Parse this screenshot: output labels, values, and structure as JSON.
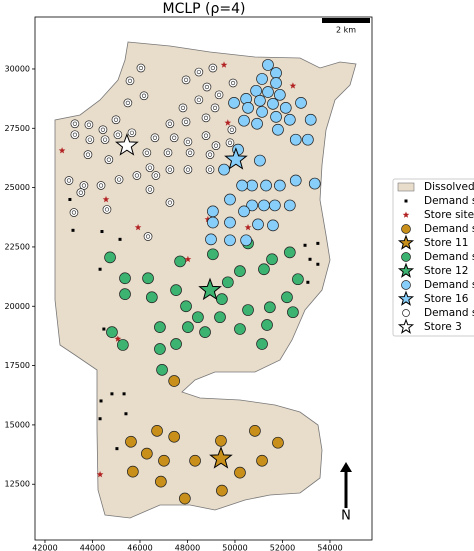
{
  "chart_data": {
    "type": "scatter",
    "title": "MCLP (ρ=4)",
    "xlim": [
      41580,
      55770
    ],
    "ylim": [
      10150,
      32190
    ],
    "xticks": [
      42000,
      44000,
      46000,
      48000,
      50000,
      52000,
      54000
    ],
    "yticks": [
      12500,
      15000,
      17500,
      20000,
      22500,
      25000,
      27500,
      30000
    ],
    "legend": "right",
    "area": {
      "name": "Dissolved",
      "color": "#e8dccb"
    },
    "scale_label": "2 km",
    "north_label": "N",
    "series": [
      {
        "name": "Demand s",
        "marker": "square",
        "color": "#000000",
        "x": [
          43050,
          43180,
          44400,
          45160,
          44320,
          44480,
          45070,
          44360,
          44820,
          45330,
          44320,
          45410,
          45030,
          53160,
          53490,
          52950,
          53490,
          53070
        ],
        "y": [
          24500,
          23200,
          23150,
          22820,
          21560,
          19040,
          18620,
          16010,
          16310,
          16310,
          15260,
          15470,
          14000,
          21980,
          21770,
          22570,
          22650,
          21010
        ]
      },
      {
        "name": "Store sites",
        "marker": "smallstar",
        "color": "#b22222",
        "x": [
          49540,
          51300,
          52440,
          42720,
          44570,
          45920,
          48020,
          48860,
          50550,
          45070,
          44320,
          49700
        ],
        "y": [
          30170,
          30250,
          29290,
          26560,
          24500,
          23320,
          21980,
          23660,
          23320,
          18620,
          12910,
          27730
        ]
      },
      {
        "name": "Demand s",
        "marker": "circle",
        "color": "#c8901a",
        "x": [
          46720,
          47440,
          45620,
          46290,
          47010,
          48320,
          49410,
          50840,
          51810,
          51140,
          45700,
          46880,
          49450,
          50210,
          47890,
          47440
        ],
        "y": [
          14750,
          14500,
          14290,
          13790,
          13490,
          13490,
          14330,
          14750,
          14250,
          13490,
          13030,
          12610,
          12230,
          12990,
          11900,
          16850
        ]
      },
      {
        "name": "Store 11",
        "marker": "star",
        "color": "#c8901a",
        "x": [
          49410
        ],
        "y": [
          13580
        ]
      },
      {
        "name": "Demand s",
        "marker": "circle",
        "color": "#3cb371",
        "x": [
          44740,
          45370,
          46340,
          47690,
          49070,
          50550,
          52310,
          51560,
          51220,
          50210,
          49700,
          52650,
          45370,
          46500,
          47520,
          47940,
          51470,
          52190,
          52440,
          48440,
          49370,
          50550,
          51350,
          50210,
          49450,
          46840,
          48020,
          44820,
          45280,
          46840,
          48740,
          51140,
          46930,
          47520
        ],
        "y": [
          22060,
          21180,
          21180,
          21890,
          22190,
          22650,
          22270,
          21980,
          21560,
          21480,
          21010,
          21140,
          20510,
          20380,
          20680,
          20000,
          19960,
          20380,
          19750,
          19540,
          19540,
          19840,
          19210,
          19040,
          20300,
          19120,
          19120,
          18910,
          18370,
          18200,
          18910,
          18410,
          17320,
          18410
        ]
      },
      {
        "name": "Store 12",
        "marker": "star",
        "color": "#3cb371",
        "x": [
          48950
        ],
        "y": [
          20680
        ]
      },
      {
        "name": "Demand s",
        "marker": "circle",
        "color": "#87cefa",
        "x": [
          51390,
          51730,
          51140,
          51730,
          50890,
          51390,
          51890,
          50470,
          51050,
          51600,
          52140,
          49960,
          50550,
          51140,
          52780,
          51730,
          52310,
          53190,
          50380,
          50930,
          53070,
          52560,
          51810,
          50130,
          51050,
          49540,
          50720,
          51310,
          51890,
          52560,
          53360,
          50300,
          50720,
          51220,
          51680,
          52310,
          50380,
          49790,
          49070,
          49070,
          49790,
          50970,
          51600,
          48990,
          49790,
          50470
        ],
        "y": [
          30170,
          29830,
          29580,
          29410,
          29080,
          29030,
          28910,
          28740,
          28660,
          28530,
          28360,
          28570,
          28360,
          28190,
          28570,
          27980,
          27860,
          27860,
          27820,
          27690,
          27020,
          27020,
          27440,
          26600,
          26140,
          25760,
          25090,
          25090,
          25090,
          25300,
          25170,
          25090,
          24250,
          24250,
          24250,
          24250,
          24000,
          24500,
          24000,
          23530,
          23530,
          23450,
          23410,
          22820,
          22780,
          22780
        ]
      },
      {
        "name": "Store 16",
        "marker": "star",
        "color": "#87cefa",
        "x": [
          50040
        ],
        "y": [
          26180
        ]
      },
      {
        "name": "Demand s",
        "marker": "ring",
        "color": "#ffffff",
        "x": [
          48480,
          49070,
          47940,
          48820,
          49330,
          49920,
          48480,
          47810,
          49160,
          48780,
          47940,
          47260,
          49870,
          46630,
          47440,
          48020,
          48780,
          49200,
          49790,
          46290,
          47180,
          48110,
          48950,
          46420,
          47260,
          45870,
          46670,
          48020,
          48950,
          46420,
          47260,
          46340,
          45660,
          46040,
          45580,
          46170,
          45490,
          44990,
          44440,
          43850,
          43260,
          43260,
          45070,
          43890,
          44530,
          43810,
          44690,
          43010,
          43640,
          44360,
          45120,
          43510,
          44610,
          43220
        ],
        "y": [
          29870,
          30040,
          29540,
          29240,
          28910,
          29410,
          28700,
          28360,
          28360,
          27940,
          27770,
          27690,
          27440,
          27100,
          27100,
          26930,
          27190,
          26770,
          26890,
          26470,
          26470,
          26470,
          26390,
          25840,
          25760,
          25510,
          25510,
          25760,
          25760,
          24920,
          24370,
          22940,
          27310,
          30040,
          29500,
          28870,
          28570,
          27860,
          27440,
          27650,
          27690,
          27230,
          27230,
          27020,
          27020,
          26390,
          26180,
          25300,
          25090,
          25090,
          25340,
          24790,
          24080,
          23950
        ]
      },
      {
        "name": "Store 3",
        "marker": "star",
        "color": "#ffffff",
        "x": [
          45450
        ],
        "y": [
          26770
        ]
      }
    ]
  }
}
